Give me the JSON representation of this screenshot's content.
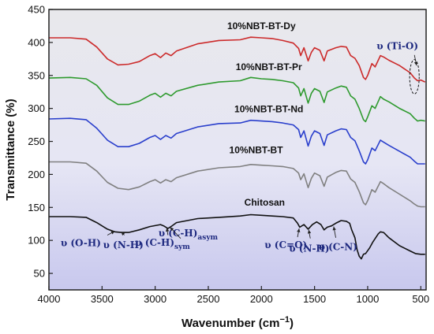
{
  "chart_data": {
    "type": "line",
    "xlabel": "Wavenumber (cm",
    "xlabel_sup": "−1",
    "xlabel_close": ")",
    "ylabel": "Transmittance (%)",
    "xlim": [
      4000,
      450
    ],
    "ylim": [
      25,
      450
    ],
    "x_reversed": true,
    "grid": false,
    "x_ticks": [
      4000,
      3500,
      3000,
      2500,
      2000,
      1500,
      1000,
      500
    ],
    "y_ticks": [
      50,
      100,
      150,
      200,
      250,
      300,
      350,
      400,
      450
    ],
    "background_gradient": [
      "#e8e8ec",
      "#e6e6f4",
      "#c8c8ee"
    ],
    "series": [
      {
        "name": "10%NBT-BT-Dy",
        "color": "#cc2a2a",
        "label_at": [
          2000,
          420
        ],
        "points": [
          [
            4000,
            407
          ],
          [
            3800,
            407
          ],
          [
            3650,
            405
          ],
          [
            3550,
            393
          ],
          [
            3450,
            375
          ],
          [
            3350,
            366
          ],
          [
            3250,
            367
          ],
          [
            3150,
            371
          ],
          [
            3050,
            380
          ],
          [
            3000,
            383
          ],
          [
            2950,
            377
          ],
          [
            2900,
            384
          ],
          [
            2850,
            380
          ],
          [
            2800,
            387
          ],
          [
            2600,
            398
          ],
          [
            2400,
            403
          ],
          [
            2200,
            404
          ],
          [
            2100,
            408
          ],
          [
            2000,
            407
          ],
          [
            1900,
            406
          ],
          [
            1800,
            403
          ],
          [
            1700,
            399
          ],
          [
            1650,
            391
          ],
          [
            1630,
            380
          ],
          [
            1600,
            392
          ],
          [
            1560,
            372
          ],
          [
            1530,
            385
          ],
          [
            1500,
            392
          ],
          [
            1450,
            388
          ],
          [
            1410,
            372
          ],
          [
            1380,
            387
          ],
          [
            1300,
            392
          ],
          [
            1250,
            394
          ],
          [
            1200,
            393
          ],
          [
            1160,
            380
          ],
          [
            1120,
            376
          ],
          [
            1080,
            365
          ],
          [
            1040,
            347
          ],
          [
            1020,
            344
          ],
          [
            1000,
            350
          ],
          [
            960,
            368
          ],
          [
            930,
            363
          ],
          [
            880,
            380
          ],
          [
            850,
            378
          ],
          [
            800,
            373
          ],
          [
            700,
            365
          ],
          [
            600,
            354
          ],
          [
            560,
            346
          ],
          [
            530,
            342
          ],
          [
            500,
            343
          ],
          [
            460,
            340
          ]
        ]
      },
      {
        "name": "10%NBT-BT-Pr",
        "color": "#2e9a2e",
        "label_at": [
          1930,
          358
        ],
        "points": [
          [
            4000,
            346
          ],
          [
            3800,
            347
          ],
          [
            3650,
            345
          ],
          [
            3550,
            335
          ],
          [
            3450,
            316
          ],
          [
            3350,
            306
          ],
          [
            3250,
            306
          ],
          [
            3150,
            311
          ],
          [
            3050,
            320
          ],
          [
            3000,
            323
          ],
          [
            2950,
            317
          ],
          [
            2900,
            323
          ],
          [
            2850,
            319
          ],
          [
            2800,
            326
          ],
          [
            2600,
            335
          ],
          [
            2400,
            340
          ],
          [
            2200,
            342
          ],
          [
            2100,
            347
          ],
          [
            2000,
            345
          ],
          [
            1900,
            344
          ],
          [
            1800,
            342
          ],
          [
            1700,
            339
          ],
          [
            1650,
            331
          ],
          [
            1630,
            319
          ],
          [
            1600,
            330
          ],
          [
            1560,
            308
          ],
          [
            1530,
            323
          ],
          [
            1500,
            330
          ],
          [
            1450,
            326
          ],
          [
            1410,
            309
          ],
          [
            1380,
            325
          ],
          [
            1300,
            331
          ],
          [
            1250,
            334
          ],
          [
            1200,
            332
          ],
          [
            1160,
            319
          ],
          [
            1120,
            314
          ],
          [
            1080,
            300
          ],
          [
            1040,
            283
          ],
          [
            1020,
            280
          ],
          [
            1000,
            287
          ],
          [
            960,
            304
          ],
          [
            930,
            300
          ],
          [
            880,
            318
          ],
          [
            850,
            314
          ],
          [
            800,
            310
          ],
          [
            700,
            300
          ],
          [
            600,
            292
          ],
          [
            560,
            285
          ],
          [
            530,
            281
          ],
          [
            500,
            282
          ],
          [
            460,
            281
          ]
        ]
      },
      {
        "name": "10%NBT-BT-Nd",
        "color": "#2a3fcc",
        "label_at": [
          1930,
          294
        ],
        "points": [
          [
            4000,
            284
          ],
          [
            3800,
            285
          ],
          [
            3650,
            283
          ],
          [
            3550,
            270
          ],
          [
            3450,
            252
          ],
          [
            3350,
            242
          ],
          [
            3250,
            242
          ],
          [
            3150,
            247
          ],
          [
            3050,
            256
          ],
          [
            3000,
            259
          ],
          [
            2950,
            253
          ],
          [
            2900,
            259
          ],
          [
            2850,
            255
          ],
          [
            2800,
            262
          ],
          [
            2600,
            272
          ],
          [
            2400,
            277
          ],
          [
            2200,
            278
          ],
          [
            2100,
            282
          ],
          [
            2000,
            281
          ],
          [
            1900,
            280
          ],
          [
            1800,
            278
          ],
          [
            1700,
            275
          ],
          [
            1650,
            268
          ],
          [
            1630,
            256
          ],
          [
            1600,
            266
          ],
          [
            1560,
            243
          ],
          [
            1530,
            258
          ],
          [
            1500,
            266
          ],
          [
            1450,
            262
          ],
          [
            1410,
            244
          ],
          [
            1380,
            260
          ],
          [
            1300,
            266
          ],
          [
            1250,
            269
          ],
          [
            1200,
            268
          ],
          [
            1160,
            256
          ],
          [
            1120,
            251
          ],
          [
            1080,
            236
          ],
          [
            1040,
            219
          ],
          [
            1020,
            216
          ],
          [
            1000,
            222
          ],
          [
            960,
            240
          ],
          [
            930,
            236
          ],
          [
            880,
            252
          ],
          [
            850,
            249
          ],
          [
            800,
            244
          ],
          [
            700,
            235
          ],
          [
            600,
            226
          ],
          [
            560,
            220
          ],
          [
            530,
            216
          ],
          [
            500,
            216
          ],
          [
            460,
            216
          ]
        ]
      },
      {
        "name": "10%NBT-BT",
        "color": "#808080",
        "label_at": [
          2050,
          232
        ],
        "points": [
          [
            4000,
            219
          ],
          [
            3800,
            219
          ],
          [
            3650,
            217
          ],
          [
            3550,
            205
          ],
          [
            3450,
            188
          ],
          [
            3350,
            179
          ],
          [
            3250,
            177
          ],
          [
            3150,
            181
          ],
          [
            3050,
            189
          ],
          [
            3000,
            192
          ],
          [
            2950,
            187
          ],
          [
            2900,
            192
          ],
          [
            2850,
            189
          ],
          [
            2800,
            195
          ],
          [
            2600,
            205
          ],
          [
            2400,
            210
          ],
          [
            2200,
            212
          ],
          [
            2100,
            215
          ],
          [
            2000,
            214
          ],
          [
            1900,
            213
          ],
          [
            1800,
            212
          ],
          [
            1700,
            209
          ],
          [
            1650,
            202
          ],
          [
            1630,
            192
          ],
          [
            1600,
            201
          ],
          [
            1560,
            180
          ],
          [
            1530,
            194
          ],
          [
            1500,
            202
          ],
          [
            1450,
            198
          ],
          [
            1410,
            182
          ],
          [
            1380,
            196
          ],
          [
            1300,
            203
          ],
          [
            1250,
            206
          ],
          [
            1200,
            205
          ],
          [
            1160,
            193
          ],
          [
            1120,
            188
          ],
          [
            1080,
            174
          ],
          [
            1040,
            157
          ],
          [
            1020,
            154
          ],
          [
            1000,
            160
          ],
          [
            960,
            177
          ],
          [
            930,
            173
          ],
          [
            880,
            189
          ],
          [
            850,
            186
          ],
          [
            800,
            180
          ],
          [
            700,
            170
          ],
          [
            600,
            160
          ],
          [
            560,
            155
          ],
          [
            530,
            152
          ],
          [
            500,
            151
          ],
          [
            460,
            151
          ]
        ]
      },
      {
        "name": "Chitosan",
        "color": "#111111",
        "label_at": [
          1970,
          153
        ],
        "points": [
          [
            4000,
            136
          ],
          [
            3800,
            136
          ],
          [
            3650,
            135
          ],
          [
            3550,
            127
          ],
          [
            3450,
            117
          ],
          [
            3380,
            113
          ],
          [
            3320,
            112
          ],
          [
            3250,
            112
          ],
          [
            3150,
            116
          ],
          [
            3050,
            121
          ],
          [
            2950,
            124
          ],
          [
            2920,
            122
          ],
          [
            2880,
            118
          ],
          [
            2850,
            121
          ],
          [
            2800,
            127
          ],
          [
            2600,
            133
          ],
          [
            2400,
            135
          ],
          [
            2200,
            137
          ],
          [
            2100,
            139
          ],
          [
            2000,
            138
          ],
          [
            1900,
            137
          ],
          [
            1800,
            136
          ],
          [
            1700,
            134
          ],
          [
            1660,
            126
          ],
          [
            1640,
            120
          ],
          [
            1600,
            124
          ],
          [
            1560,
            117
          ],
          [
            1520,
            124
          ],
          [
            1480,
            128
          ],
          [
            1440,
            124
          ],
          [
            1410,
            116
          ],
          [
            1380,
            120
          ],
          [
            1340,
            122
          ],
          [
            1300,
            126
          ],
          [
            1250,
            130
          ],
          [
            1200,
            129
          ],
          [
            1170,
            126
          ],
          [
            1150,
            116
          ],
          [
            1120,
            104
          ],
          [
            1100,
            86
          ],
          [
            1080,
            76
          ],
          [
            1060,
            72
          ],
          [
            1040,
            79
          ],
          [
            1020,
            80
          ],
          [
            980,
            89
          ],
          [
            950,
            98
          ],
          [
            900,
            110
          ],
          [
            880,
            113
          ],
          [
            850,
            112
          ],
          [
            800,
            104
          ],
          [
            700,
            92
          ],
          [
            600,
            84
          ],
          [
            550,
            80
          ],
          [
            500,
            79
          ],
          [
            460,
            79
          ]
        ]
      }
    ],
    "annotations": [
      {
        "label": "υ (O-H)",
        "text_at": [
          3700,
          91
        ],
        "arrow_from": [
          3450,
          108
        ],
        "arrow_to": [
          3380,
          114
        ]
      },
      {
        "label": "υ (N-H)",
        "text_at": [
          3300,
          88
        ],
        "arrow_from": [
          3290,
          108
        ],
        "arrow_to": [
          3320,
          113
        ]
      },
      {
        "label": "υ (C-H)",
        "sub": "sym",
        "text_at": [
          2930,
          92
        ],
        "arrow_from": [
          2880,
          108
        ],
        "arrow_to": [
          2890,
          119
        ]
      },
      {
        "label": "υ (C-H)",
        "sub": "asym",
        "text_at": [
          2690,
          106
        ],
        "arrow_from": [
          2760,
          103
        ],
        "arrow_to": [
          2860,
          120
        ]
      },
      {
        "label": "υ (C=O)",
        "text_at": [
          1770,
          88
        ],
        "arrow_from": [
          1660,
          105
        ],
        "arrow_to": [
          1645,
          118
        ]
      },
      {
        "label": "υ (N-H)",
        "text_at": [
          1550,
          83
        ],
        "arrow_from": [
          1540,
          103
        ],
        "arrow_to": [
          1555,
          116
        ]
      },
      {
        "label": "υ (C-N)",
        "text_at": [
          1280,
          85
        ],
        "arrow_from": [
          1300,
          104
        ],
        "arrow_to": [
          1320,
          121
        ]
      },
      {
        "label": "υ (Ti-O)",
        "text_at": [
          720,
          390
        ],
        "arrow_from": [
          560,
          381
        ],
        "arrow_to": [
          540,
          365
        ]
      }
    ],
    "highlight_ellipse": {
      "center": [
        560,
        348
      ],
      "radius_x": 45,
      "radius_y": 26
    }
  }
}
